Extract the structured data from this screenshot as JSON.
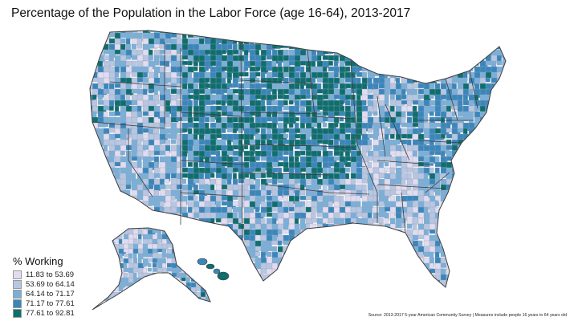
{
  "title": "Percentage of the Population in the Labor Force (age 16-64), 2013-2017",
  "legend": {
    "title": "% Working",
    "items": [
      {
        "label": "11.83 to 53.69",
        "color": "#e2dcf0"
      },
      {
        "label": "53.69 to 64.14",
        "color": "#b8c6e2"
      },
      {
        "label": "64.14 to 71.17",
        "color": "#7bafd8"
      },
      {
        "label": "71.17 to 77.61",
        "color": "#3a86bb"
      },
      {
        "label": "77.61 to 92.81",
        "color": "#0f6e6e"
      }
    ]
  },
  "source": "Source: 2013-2017 5-year American Community Survey | Measures include people 16 years to 64 years old",
  "colors": {
    "state_border": "#3d3d3d",
    "county_border": "#9aa5b8"
  }
}
